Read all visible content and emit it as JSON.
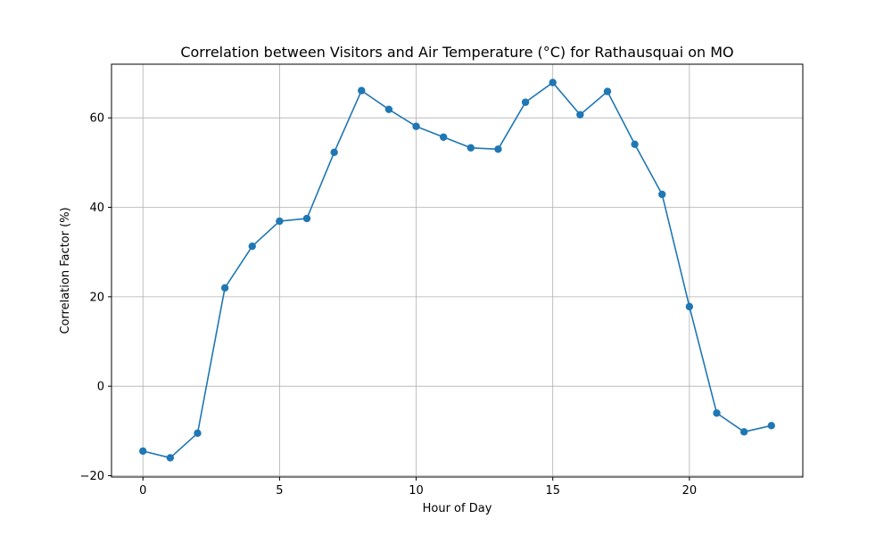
{
  "chart_data": {
    "type": "line",
    "title": "Correlation between Visitors and Air Temperature (°C) for Rathausquai on MO",
    "xlabel": "Hour of Day",
    "ylabel": "Correlation Factor (%)",
    "xlim": [
      -1.15,
      24.15
    ],
    "ylim": [
      -20.3,
      72
    ],
    "xticks": [
      0,
      5,
      10,
      15,
      20
    ],
    "yticks": [
      -20,
      0,
      20,
      40,
      60
    ],
    "grid": true,
    "legend": "none",
    "series": [
      {
        "color": "#1f77b4",
        "marker": "circle",
        "x": [
          0,
          1,
          2,
          3,
          4,
          5,
          6,
          7,
          8,
          9,
          10,
          11,
          12,
          13,
          14,
          15,
          16,
          17,
          18,
          19,
          20,
          21,
          22,
          23
        ],
        "y": [
          -14.5,
          -16.0,
          -10.5,
          22.0,
          31.3,
          36.9,
          37.5,
          52.3,
          66.1,
          61.9,
          58.1,
          55.7,
          53.3,
          53.0,
          63.5,
          67.9,
          60.7,
          65.9,
          54.1,
          42.9,
          17.8,
          -6.0,
          -10.2,
          -8.8
        ]
      }
    ]
  }
}
